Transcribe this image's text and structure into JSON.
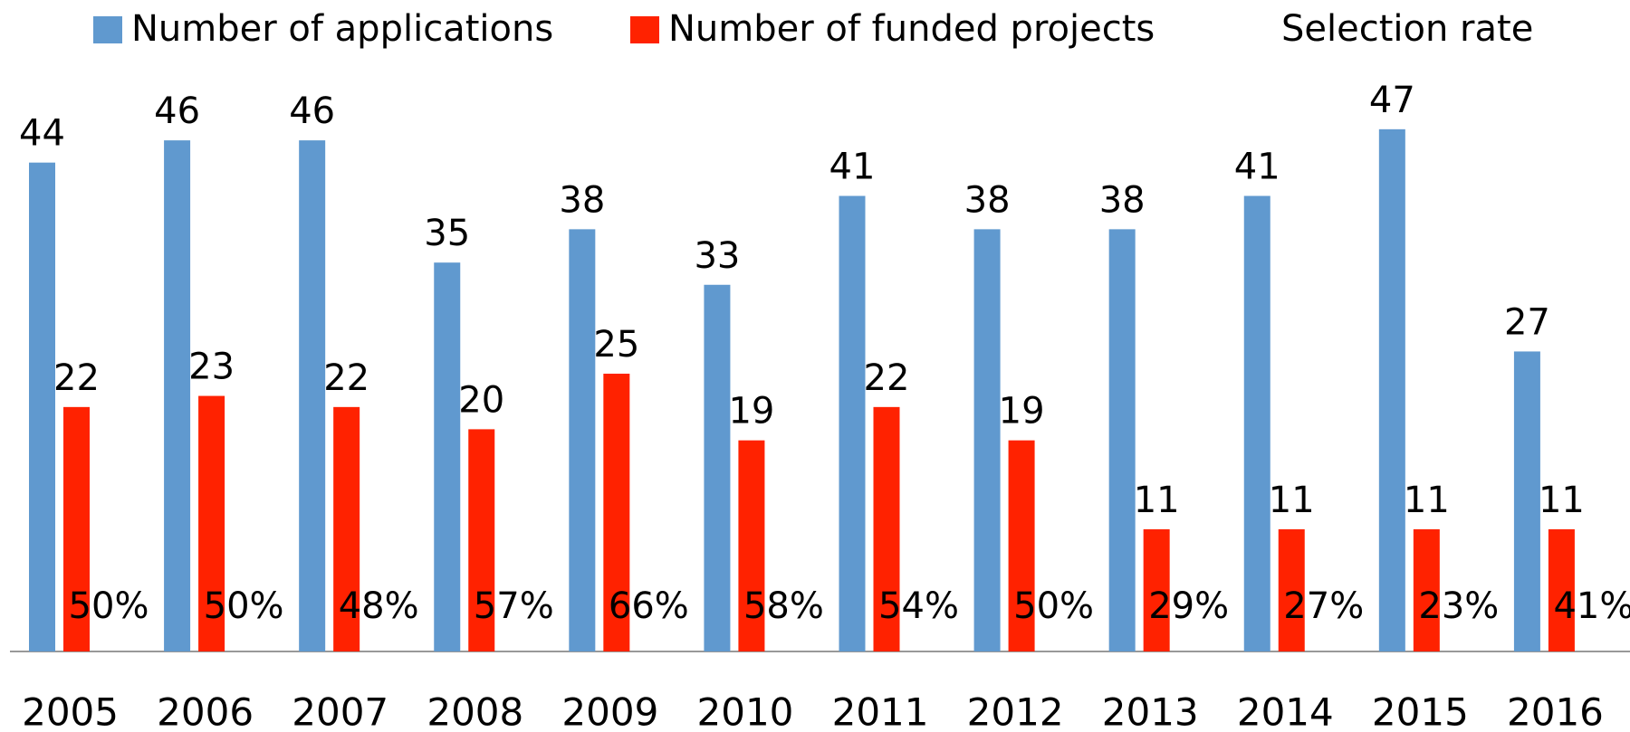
{
  "chart_data": {
    "type": "bar",
    "categories": [
      "2005",
      "2006",
      "2007",
      "2008",
      "2009",
      "2010",
      "2011",
      "2012",
      "2013",
      "2014",
      "2015",
      "2016"
    ],
    "series": [
      {
        "name": "Number of applications",
        "color": "#6099cf",
        "values": [
          44,
          46,
          46,
          35,
          38,
          33,
          41,
          38,
          38,
          41,
          47,
          27
        ]
      },
      {
        "name": "Number of funded projects",
        "color": "#ff2200",
        "values": [
          22,
          23,
          22,
          20,
          25,
          19,
          22,
          19,
          11,
          11,
          11,
          11
        ]
      },
      {
        "name": "Selection rate",
        "color": "none",
        "values": [
          50,
          50,
          48,
          57,
          66,
          58,
          54,
          50,
          29,
          27,
          23,
          41
        ],
        "value_labels": [
          "50%",
          "50%",
          "48%",
          "57%",
          "66%",
          "58%",
          "54%",
          "50%",
          "29%",
          "27%",
          "23%",
          "41%"
        ]
      }
    ],
    "ylim": [
      0,
      50
    ]
  }
}
